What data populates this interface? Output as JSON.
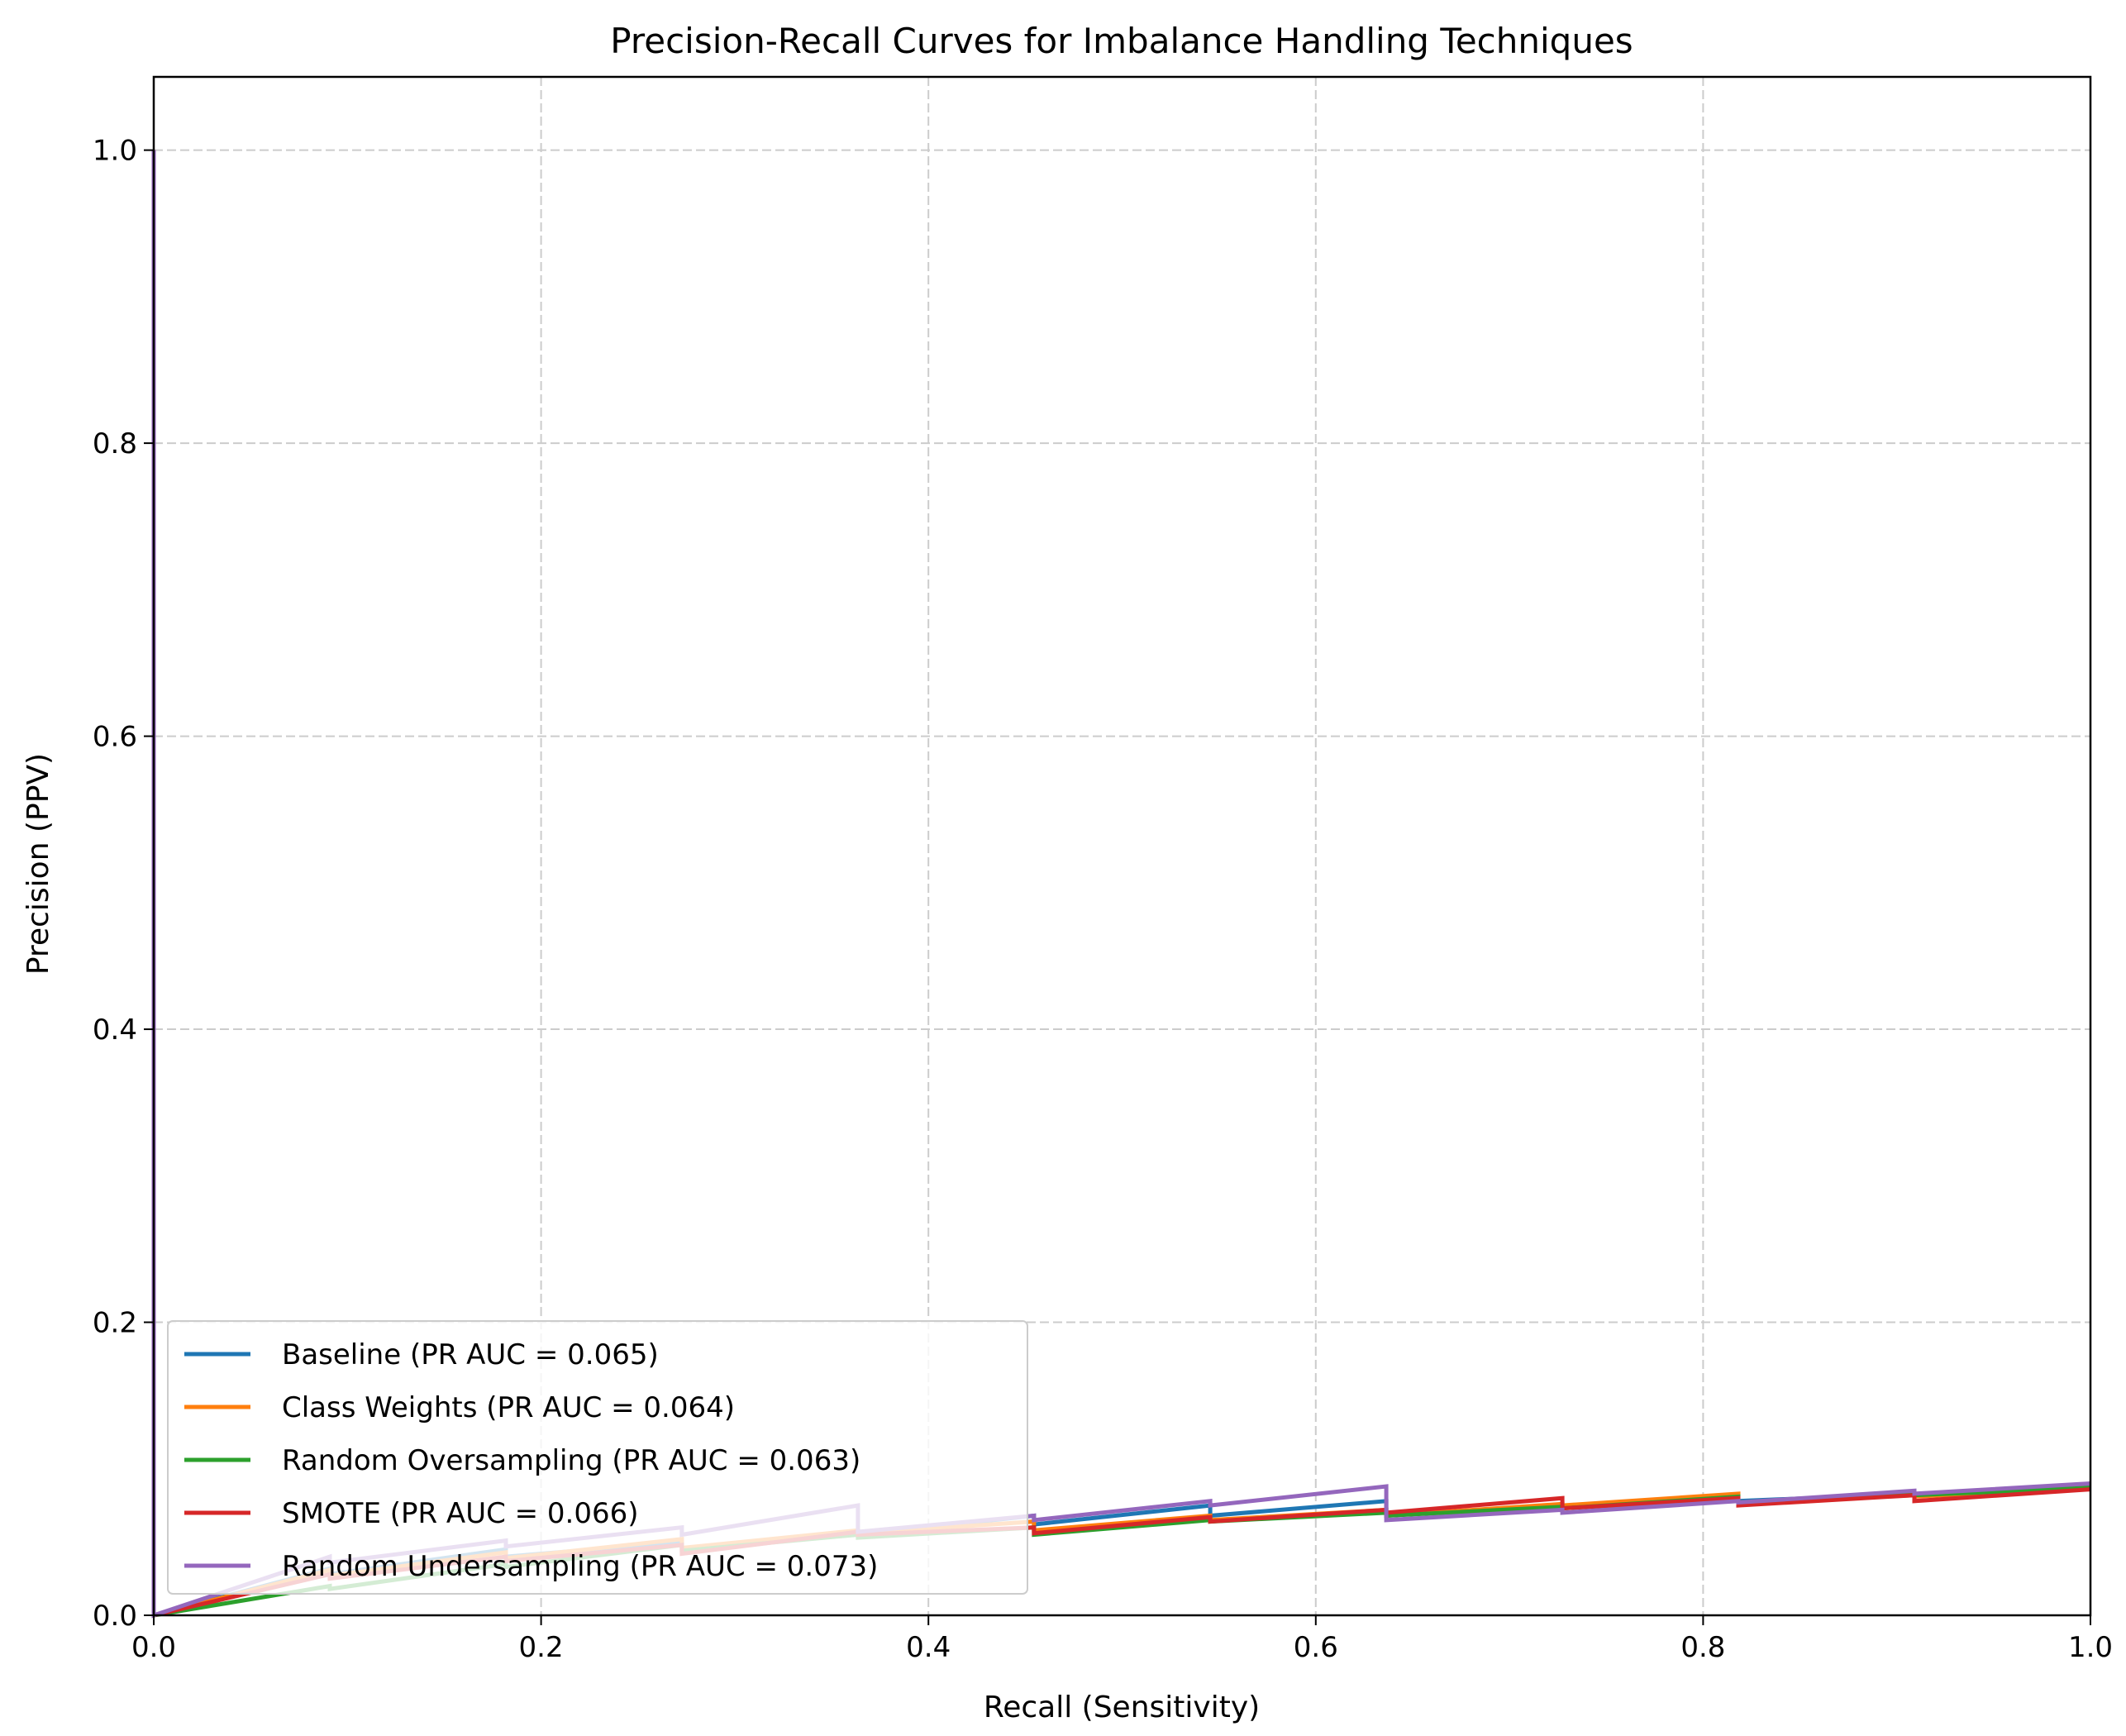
{
  "chart_data": {
    "type": "line",
    "title": "Precision-Recall Curves for Imbalance Handling Techniques",
    "xlabel": "Recall (Sensitivity)",
    "ylabel": "Precision (PPV)",
    "xlim": [
      0.0,
      1.0
    ],
    "ylim": [
      0.0,
      1.05
    ],
    "xticks": [
      "0.0",
      "0.2",
      "0.4",
      "0.6",
      "0.8",
      "1.0"
    ],
    "yticks": [
      "0.0",
      "0.2",
      "0.4",
      "0.6",
      "0.8",
      "1.0"
    ],
    "grid": true,
    "legend_position": "lower left",
    "series": [
      {
        "name": "Baseline (PR AUC = 0.065)",
        "color": "#1f77b4",
        "points": [
          [
            0.0,
            1.0
          ],
          [
            0.0,
            0.0
          ],
          [
            0.0909,
            0.032
          ],
          [
            0.0909,
            0.028
          ],
          [
            0.1818,
            0.045
          ],
          [
            0.1818,
            0.04
          ],
          [
            0.2727,
            0.05
          ],
          [
            0.2727,
            0.045
          ],
          [
            0.3636,
            0.056
          ],
          [
            0.3636,
            0.055
          ],
          [
            0.4545,
            0.068
          ],
          [
            0.4545,
            0.062
          ],
          [
            0.5455,
            0.075
          ],
          [
            0.5455,
            0.068
          ],
          [
            0.6364,
            0.078
          ],
          [
            0.6364,
            0.068
          ],
          [
            0.7273,
            0.075
          ],
          [
            0.7273,
            0.073
          ],
          [
            0.8182,
            0.08
          ],
          [
            0.8182,
            0.078
          ],
          [
            0.9091,
            0.083
          ],
          [
            0.9091,
            0.082
          ],
          [
            1.0,
            0.088
          ]
        ]
      },
      {
        "name": "Class Weights (PR AUC = 0.064)",
        "color": "#ff7f0e",
        "points": [
          [
            0.0,
            1.0
          ],
          [
            0.0,
            0.0
          ],
          [
            0.0909,
            0.031
          ],
          [
            0.0909,
            0.027
          ],
          [
            0.1818,
            0.043
          ],
          [
            0.1818,
            0.039
          ],
          [
            0.2727,
            0.052
          ],
          [
            0.2727,
            0.046
          ],
          [
            0.3636,
            0.058
          ],
          [
            0.3636,
            0.056
          ],
          [
            0.4545,
            0.064
          ],
          [
            0.4545,
            0.058
          ],
          [
            0.5455,
            0.068
          ],
          [
            0.5455,
            0.065
          ],
          [
            0.6364,
            0.072
          ],
          [
            0.6364,
            0.068
          ],
          [
            0.7273,
            0.076
          ],
          [
            0.7273,
            0.075
          ],
          [
            0.8182,
            0.083
          ],
          [
            0.8182,
            0.077
          ],
          [
            0.9091,
            0.082
          ],
          [
            0.9091,
            0.081
          ],
          [
            1.0,
            0.087
          ]
        ]
      },
      {
        "name": "Random Oversampling (PR AUC = 0.063)",
        "color": "#2ca02c",
        "points": [
          [
            0.0,
            1.0
          ],
          [
            0.0,
            0.0
          ],
          [
            0.0909,
            0.02
          ],
          [
            0.0909,
            0.018
          ],
          [
            0.1818,
            0.035
          ],
          [
            0.1818,
            0.033
          ],
          [
            0.2727,
            0.048
          ],
          [
            0.2727,
            0.044
          ],
          [
            0.3636,
            0.055
          ],
          [
            0.3636,
            0.053
          ],
          [
            0.4545,
            0.06
          ],
          [
            0.4545,
            0.055
          ],
          [
            0.5455,
            0.065
          ],
          [
            0.5455,
            0.064
          ],
          [
            0.6364,
            0.07
          ],
          [
            0.6364,
            0.068
          ],
          [
            0.7273,
            0.074
          ],
          [
            0.7273,
            0.073
          ],
          [
            0.8182,
            0.081
          ],
          [
            0.8182,
            0.077
          ],
          [
            0.9091,
            0.083
          ],
          [
            0.9091,
            0.082
          ],
          [
            1.0,
            0.087
          ]
        ]
      },
      {
        "name": "SMOTE (PR AUC = 0.066)",
        "color": "#d62728",
        "points": [
          [
            0.0,
            1.0
          ],
          [
            0.0,
            0.0
          ],
          [
            0.0909,
            0.028
          ],
          [
            0.0909,
            0.025
          ],
          [
            0.1818,
            0.04
          ],
          [
            0.1818,
            0.037
          ],
          [
            0.2727,
            0.048
          ],
          [
            0.2727,
            0.042
          ],
          [
            0.3636,
            0.057
          ],
          [
            0.3636,
            0.055
          ],
          [
            0.4545,
            0.06
          ],
          [
            0.4545,
            0.056
          ],
          [
            0.5455,
            0.067
          ],
          [
            0.5455,
            0.064
          ],
          [
            0.6364,
            0.072
          ],
          [
            0.6364,
            0.07
          ],
          [
            0.7273,
            0.08
          ],
          [
            0.7273,
            0.073
          ],
          [
            0.8182,
            0.08
          ],
          [
            0.8182,
            0.075
          ],
          [
            0.9091,
            0.082
          ],
          [
            0.9091,
            0.078
          ],
          [
            1.0,
            0.086
          ]
        ]
      },
      {
        "name": "Random Undersampling (PR AUC = 0.073)",
        "color": "#9467bd",
        "points": [
          [
            0.0,
            1.0
          ],
          [
            0.0,
            0.0
          ],
          [
            0.0909,
            0.04
          ],
          [
            0.0909,
            0.036
          ],
          [
            0.1818,
            0.051
          ],
          [
            0.1818,
            0.047
          ],
          [
            0.2727,
            0.06
          ],
          [
            0.2727,
            0.055
          ],
          [
            0.3636,
            0.075
          ],
          [
            0.3636,
            0.057
          ],
          [
            0.4545,
            0.068
          ],
          [
            0.4545,
            0.065
          ],
          [
            0.5455,
            0.078
          ],
          [
            0.5455,
            0.075
          ],
          [
            0.6364,
            0.088
          ],
          [
            0.6364,
            0.065
          ],
          [
            0.7273,
            0.072
          ],
          [
            0.7273,
            0.07
          ],
          [
            0.8182,
            0.078
          ],
          [
            0.8182,
            0.077
          ],
          [
            0.9091,
            0.085
          ],
          [
            0.9091,
            0.083
          ],
          [
            1.0,
            0.09
          ]
        ]
      }
    ]
  }
}
